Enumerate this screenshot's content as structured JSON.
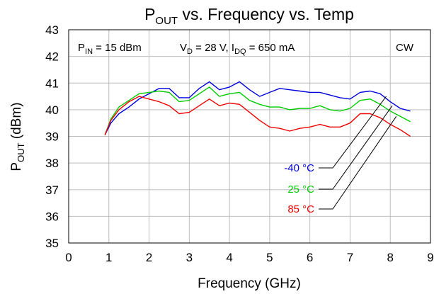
{
  "chart_data": {
    "type": "line",
    "title": {
      "main": "P",
      "sub": "OUT",
      "rest": " vs. Frequency vs. Temp"
    },
    "xlabel": "Frequency (GHz)",
    "ylabel": {
      "main": "P",
      "sub": "OUT",
      "rest": " (dBm)"
    },
    "xlim": [
      0,
      9
    ],
    "ylim": [
      35,
      43
    ],
    "xticks": [
      0,
      1,
      2,
      3,
      4,
      5,
      6,
      7,
      8,
      9
    ],
    "yticks": [
      35,
      36,
      37,
      38,
      39,
      40,
      41,
      42,
      43
    ],
    "grid": true,
    "annotations": {
      "pin": {
        "main": "P",
        "sub": "IN",
        "rest": " = 15 dBm"
      },
      "vd": {
        "main": "V",
        "sub": "D",
        "rest": " = 28 V, "
      },
      "idq": {
        "main": "I",
        "sub": "DQ",
        "rest": " = 650 mA"
      },
      "mode": "CW"
    },
    "series": [
      {
        "name": "-40 °C",
        "color": "#0000dd",
        "x": [
          0.9,
          1.05,
          1.25,
          1.5,
          1.75,
          2.0,
          2.25,
          2.5,
          2.75,
          3.0,
          3.25,
          3.5,
          3.75,
          4.0,
          4.25,
          4.5,
          4.75,
          5.0,
          5.25,
          5.5,
          5.75,
          6.0,
          6.25,
          6.5,
          6.75,
          7.0,
          7.25,
          7.5,
          7.75,
          8.0,
          8.25,
          8.5
        ],
        "y": [
          39.05,
          39.5,
          39.85,
          40.1,
          40.4,
          40.6,
          40.8,
          40.8,
          40.45,
          40.45,
          40.8,
          41.05,
          40.75,
          40.85,
          41.05,
          40.75,
          40.5,
          40.65,
          40.8,
          40.75,
          40.7,
          40.65,
          40.65,
          40.55,
          40.45,
          40.4,
          40.65,
          40.7,
          40.6,
          40.3,
          40.05,
          39.95
        ]
      },
      {
        "name": "25 °C",
        "color": "#00cc00",
        "x": [
          0.9,
          1.05,
          1.25,
          1.5,
          1.75,
          2.0,
          2.25,
          2.5,
          2.75,
          3.0,
          3.25,
          3.5,
          3.75,
          4.0,
          4.25,
          4.5,
          4.75,
          5.0,
          5.25,
          5.5,
          5.75,
          6.0,
          6.25,
          6.5,
          6.75,
          7.0,
          7.25,
          7.5,
          7.75,
          8.0,
          8.25,
          8.5
        ],
        "y": [
          39.05,
          39.65,
          40.1,
          40.35,
          40.6,
          40.65,
          40.7,
          40.65,
          40.3,
          40.35,
          40.6,
          40.85,
          40.5,
          40.6,
          40.65,
          40.35,
          40.2,
          40.1,
          40.1,
          40.0,
          40.05,
          40.05,
          40.15,
          40.0,
          39.95,
          40.05,
          40.35,
          40.4,
          40.2,
          39.95,
          39.75,
          39.55
        ]
      },
      {
        "name": "85 °C",
        "color": "#ee0000",
        "x": [
          0.9,
          1.05,
          1.25,
          1.5,
          1.75,
          2.0,
          2.25,
          2.5,
          2.75,
          3.0,
          3.25,
          3.5,
          3.75,
          4.0,
          4.25,
          4.5,
          4.75,
          5.0,
          5.25,
          5.5,
          5.75,
          6.0,
          6.25,
          6.5,
          6.75,
          7.0,
          7.25,
          7.5,
          7.75,
          8.0,
          8.25,
          8.5
        ],
        "y": [
          39.05,
          39.6,
          40.0,
          40.3,
          40.5,
          40.4,
          40.3,
          40.15,
          39.85,
          39.9,
          40.15,
          40.4,
          40.15,
          40.25,
          40.2,
          39.9,
          39.6,
          39.35,
          39.3,
          39.2,
          39.3,
          39.35,
          39.45,
          39.35,
          39.35,
          39.5,
          39.85,
          39.85,
          39.7,
          39.45,
          39.25,
          39.0
        ]
      }
    ],
    "legend": [
      {
        "label": "-40 °C",
        "color": "#0000dd",
        "at_x": 7.9,
        "at_y": 40.5
      },
      {
        "label": "25 °C",
        "color": "#00cc00",
        "at_x": 8.05,
        "at_y": 40.15
      },
      {
        "label": "85 °C",
        "color": "#ee0000",
        "at_x": 8.15,
        "at_y": 39.75
      }
    ],
    "legend_placement": "lower-right, inside plot with leader lines"
  }
}
